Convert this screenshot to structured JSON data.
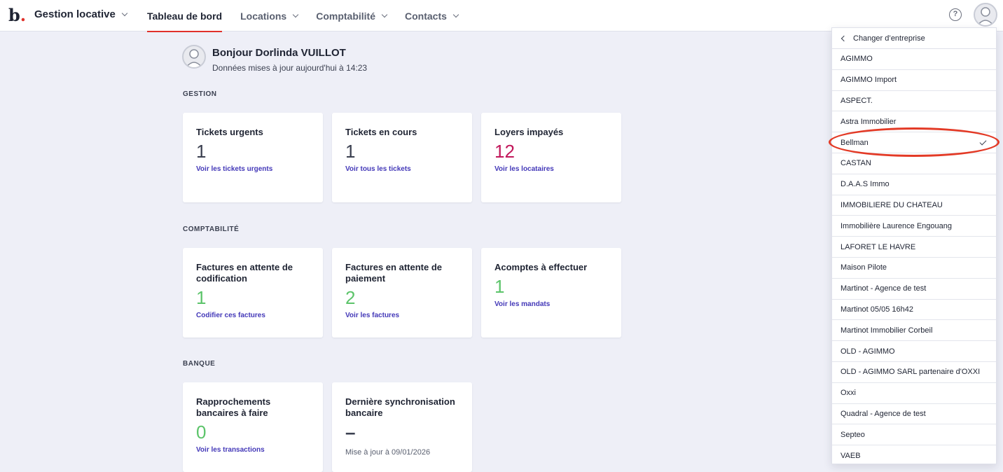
{
  "header": {
    "logo_letter": "b",
    "logo_dot": ".",
    "app_name": "Gestion locative",
    "nav": [
      {
        "label": "Tableau de bord"
      },
      {
        "label": "Locations"
      },
      {
        "label": "Comptabilité"
      },
      {
        "label": "Contacts"
      }
    ],
    "help_symbol": "?"
  },
  "greeting": {
    "title": "Bonjour Dorlinda VUILLOT",
    "subtitle": "Données mises à jour aujourd'hui à 14:23"
  },
  "sections": {
    "gestion": "GESTION",
    "comptabilite": "COMPTABILITÉ",
    "banque": "BANQUE"
  },
  "cards": {
    "tickets_urgents": {
      "title": "Tickets urgents",
      "value": "1",
      "link": "Voir les tickets urgents"
    },
    "tickets_en_cours": {
      "title": "Tickets en cours",
      "value": "1",
      "link": "Voir tous les tickets"
    },
    "loyers_impayes": {
      "title": "Loyers impayés",
      "value": "12",
      "link": "Voir les locataires"
    },
    "factures_codification": {
      "title": "Factures en attente de codification",
      "value": "1",
      "link": "Codifier ces factures"
    },
    "factures_paiement": {
      "title": "Factures en attente de paiement",
      "value": "2",
      "link": "Voir les factures"
    },
    "acomptes": {
      "title": "Acomptes à effectuer",
      "value": "1",
      "link": "Voir les mandats"
    },
    "rapprochements": {
      "title": "Rapprochements bancaires à faire",
      "value": "0",
      "link": "Voir les transactions"
    },
    "derniere_sync": {
      "title": "Dernière synchronisation bancaire",
      "value": "–",
      "note": "Mise à jour à 09/01/2026"
    }
  },
  "colors": {
    "accent_red": "#e0312a",
    "link_purple": "#4338b8",
    "value_dark": "#3b4050",
    "value_crimson": "#c2185b",
    "value_green": "#5cc46a"
  },
  "company_menu": {
    "header": "Changer d’entreprise",
    "selected": "Bellman",
    "items": [
      {
        "label": "AGIMMO"
      },
      {
        "label": "AGIMMO Import"
      },
      {
        "label": "ASPECT."
      },
      {
        "label": "Astra Immobilier"
      },
      {
        "label": "Bellman"
      },
      {
        "label": "CASTAN"
      },
      {
        "label": "D.A.A.S Immo"
      },
      {
        "label": "IMMOBILIERE DU CHATEAU"
      },
      {
        "label": "Immobilière Laurence Engouang"
      },
      {
        "label": "LAFORET LE HAVRE"
      },
      {
        "label": "Maison Pilote"
      },
      {
        "label": "Martinot - Agence de test"
      },
      {
        "label": "Martinot 05/05 16h42"
      },
      {
        "label": "Martinot Immobilier Corbeil"
      },
      {
        "label": "OLD - AGIMMO"
      },
      {
        "label": "OLD - AGIMMO SARL partenaire d'OXXI"
      },
      {
        "label": "Oxxi"
      },
      {
        "label": "Quadral - Agence de test"
      },
      {
        "label": "Septeo"
      },
      {
        "label": "VAEB"
      }
    ]
  }
}
